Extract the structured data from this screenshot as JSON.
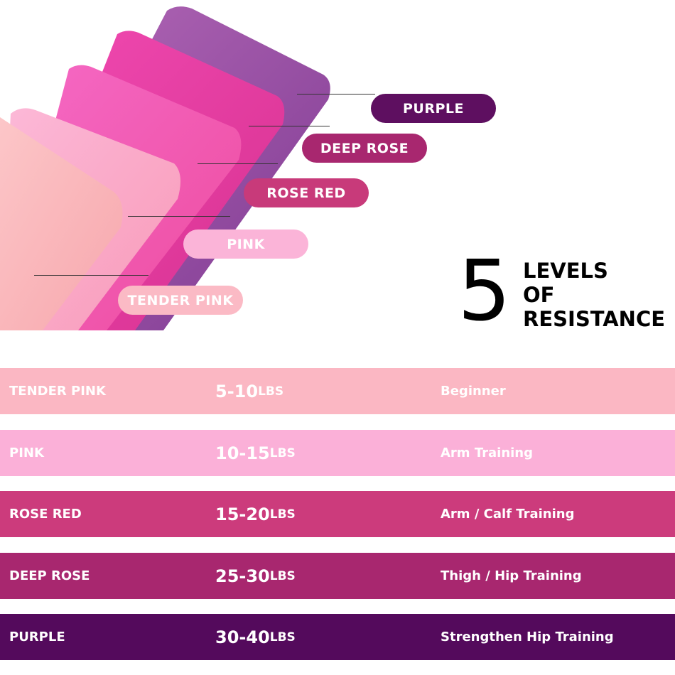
{
  "labels": [
    {
      "name": "PURPLE",
      "color": "#5e0f60"
    },
    {
      "name": "DEEP ROSE",
      "color": "#a8276f"
    },
    {
      "name": "ROSE RED",
      "color": "#c83a7a"
    },
    {
      "name": "PINK",
      "color": "#fbb4d8"
    },
    {
      "name": "TENDER PINK",
      "color": "#fbbac5"
    }
  ],
  "headline": {
    "number": "5",
    "line1": "LEVELS",
    "line2": "OF",
    "line3": "RESISTANCE"
  },
  "rows": [
    {
      "color_name": "TENDER PINK",
      "range": "5-10",
      "unit": "LBS",
      "use": "Beginner",
      "bg": "#fbb7c3"
    },
    {
      "color_name": "PINK",
      "range": "10-15",
      "unit": "LBS",
      "use": "Arm Training",
      "bg": "#fbb0d8"
    },
    {
      "color_name": "ROSE RED",
      "range": "15-20",
      "unit": "LBS",
      "use": "Arm / Calf Training",
      "bg": "#cc3b7c"
    },
    {
      "color_name": "DEEP ROSE",
      "range": "25-30",
      "unit": "LBS",
      "use": "Thigh / Hip Training",
      "bg": "#a8276f"
    },
    {
      "color_name": "PURPLE",
      "range": "30-40",
      "unit": "LBS",
      "use": "Strengthen Hip Training",
      "bg": "#540a5c"
    }
  ]
}
